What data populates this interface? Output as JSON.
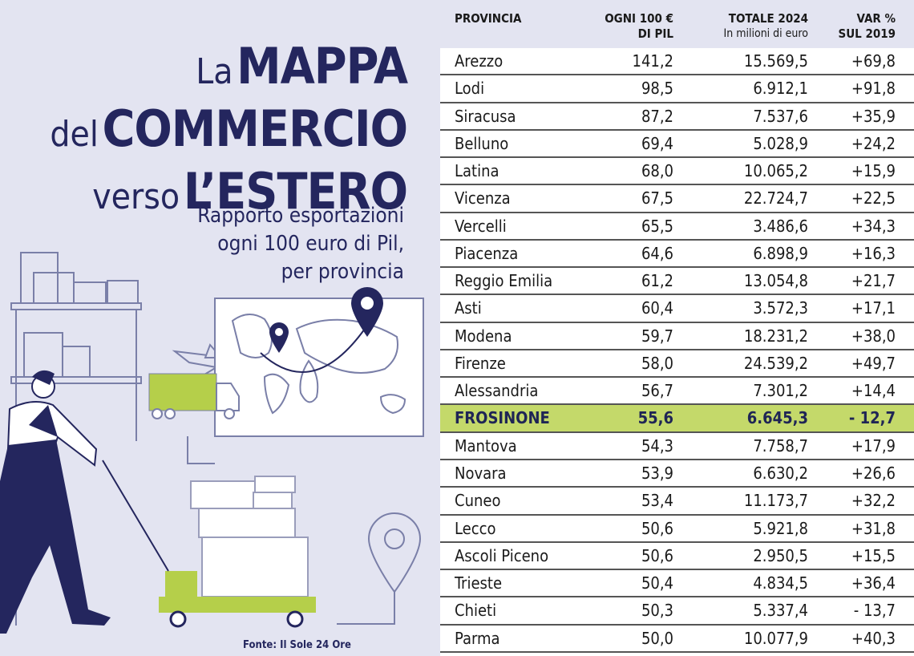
{
  "title": {
    "line1_prefix": "La",
    "line1_bold": "MAPPA",
    "line2_prefix": "del",
    "line2_bold": "COMMERCIO",
    "line3_prefix": "verso",
    "line3_bold": "L’ESTERO"
  },
  "subtitle": {
    "line1": "Rapporto esportazioni",
    "line2": "ogni 100 euro di Pil,",
    "line3": "per provincia"
  },
  "source": "Fonte: Il Sole 24 Ore",
  "colors": {
    "background": "#e3e4f1",
    "navy": "#24265e",
    "green": "#b5cf4a",
    "highlight": "#c4d96a"
  },
  "table": {
    "headers": {
      "provincia": "PROVINCIA",
      "ogni100_l1": "OGNI 100 €",
      "ogni100_l2": "DI PIL",
      "totale_l1": "TOTALE 2024",
      "totale_l2": "In milioni di euro",
      "var_l1": "VAR %",
      "var_l2": "SUL 2019"
    },
    "rows": [
      {
        "provincia": "Arezzo",
        "ogni100": "141,2",
        "totale": "15.569,5",
        "var": "+69,8"
      },
      {
        "provincia": "Lodi",
        "ogni100": "98,5",
        "totale": "6.912,1",
        "var": "+91,8"
      },
      {
        "provincia": "Siracusa",
        "ogni100": "87,2",
        "totale": "7.537,6",
        "var": "+35,9"
      },
      {
        "provincia": "Belluno",
        "ogni100": "69,4",
        "totale": "5.028,9",
        "var": "+24,2"
      },
      {
        "provincia": "Latina",
        "ogni100": "68,0",
        "totale": "10.065,2",
        "var": "+15,9"
      },
      {
        "provincia": "Vicenza",
        "ogni100": "67,5",
        "totale": "22.724,7",
        "var": "+22,5"
      },
      {
        "provincia": "Vercelli",
        "ogni100": "65,5",
        "totale": "3.486,6",
        "var": "+34,3"
      },
      {
        "provincia": "Piacenza",
        "ogni100": "64,6",
        "totale": "6.898,9",
        "var": "+16,3"
      },
      {
        "provincia": "Reggio Emilia",
        "ogni100": "61,2",
        "totale": "13.054,8",
        "var": "+21,7"
      },
      {
        "provincia": "Asti",
        "ogni100": "60,4",
        "totale": "3.572,3",
        "var": "+17,1"
      },
      {
        "provincia": "Modena",
        "ogni100": "59,7",
        "totale": "18.231,2",
        "var": "+38,0"
      },
      {
        "provincia": "Firenze",
        "ogni100": "58,0",
        "totale": "24.539,2",
        "var": "+49,7"
      },
      {
        "provincia": "Alessandria",
        "ogni100": "56,7",
        "totale": "7.301,2",
        "var": "+14,4"
      },
      {
        "provincia": "FROSINONE",
        "ogni100": "55,6",
        "totale": "6.645,3",
        "var": "- 12,7",
        "highlight": true
      },
      {
        "provincia": "Mantova",
        "ogni100": "54,3",
        "totale": "7.758,7",
        "var": "+17,9"
      },
      {
        "provincia": "Novara",
        "ogni100": "53,9",
        "totale": "6.630,2",
        "var": "+26,6"
      },
      {
        "provincia": "Cuneo",
        "ogni100": "53,4",
        "totale": "11.173,7",
        "var": "+32,2"
      },
      {
        "provincia": "Lecco",
        "ogni100": "50,6",
        "totale": "5.921,8",
        "var": "+31,8"
      },
      {
        "provincia": "Ascoli Piceno",
        "ogni100": "50,6",
        "totale": "2.950,5",
        "var": "+15,5"
      },
      {
        "provincia": "Trieste",
        "ogni100": "50,4",
        "totale": "4.834,5",
        "var": "+36,4"
      },
      {
        "provincia": "Chieti",
        "ogni100": "50,3",
        "totale": "5.337,4",
        "var": "- 13,7"
      },
      {
        "provincia": "Parma",
        "ogni100": "50,0",
        "totale": "10.077,9",
        "var": "+40,3"
      }
    ]
  },
  "illustration": {
    "icons": [
      "shelf-with-boxes-icon",
      "airplane-icon",
      "truck-icon",
      "world-map-icon",
      "map-pin-icon",
      "worker-icon",
      "hand-truck-icon",
      "location-pin-icon"
    ]
  }
}
